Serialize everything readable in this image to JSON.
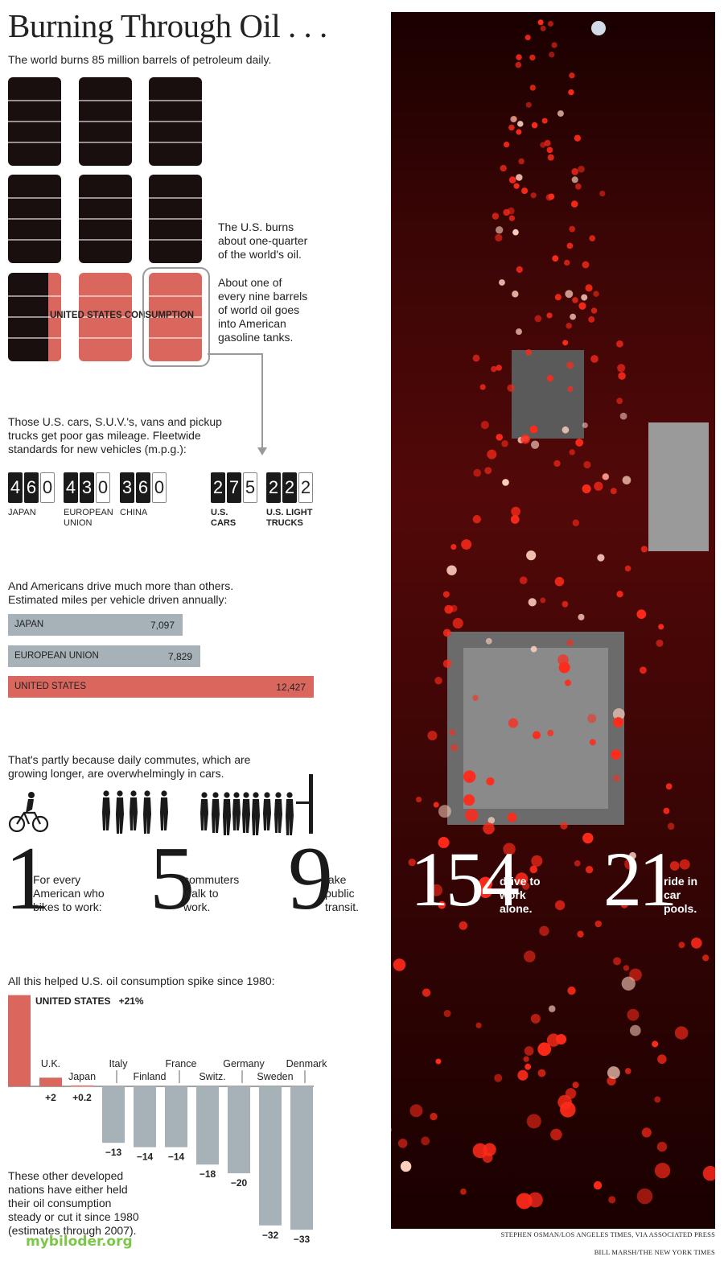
{
  "header": {
    "title": "Burning Through Oil . . .",
    "subtitle": "The world burns 85 million barrels of petroleum daily."
  },
  "barrels": {
    "us_label": "UNITED STATES CONSUMPTION",
    "note1": [
      "The U.S. burns",
      "about one-quarter",
      "of the world's oil."
    ],
    "note2": [
      "About one of",
      "every nine barrels",
      "of world oil goes",
      "into American",
      "gasoline tanks."
    ]
  },
  "mileage": {
    "intro": [
      "Those U.S. cars, S.U.V.'s, vans and pickup",
      "trucks get poor gas mileage. Fleetwide",
      "standards for new vehicles (m.p.g.):"
    ],
    "items": [
      {
        "digits": [
          "4",
          "6",
          "0"
        ],
        "label": [
          "JAPAN"
        ]
      },
      {
        "digits": [
          "4",
          "3",
          "0"
        ],
        "label": [
          "EUROPEAN",
          "UNION"
        ]
      },
      {
        "digits": [
          "3",
          "6",
          "0"
        ],
        "label": [
          "CHINA"
        ]
      },
      {
        "digits": [
          "2",
          "7",
          "5"
        ],
        "label": [
          "U.S.",
          "CARS"
        ]
      },
      {
        "digits": [
          "2",
          "2",
          "2"
        ],
        "label": [
          "U.S. LIGHT",
          "TRUCKS"
        ]
      }
    ]
  },
  "miles": {
    "intro": [
      "And Americans drive much more than others.",
      "Estimated miles per vehicle driven annually:"
    ],
    "rows": [
      {
        "name": "JAPAN",
        "value": "7,097"
      },
      {
        "name": "EUROPEAN UNION",
        "value": "7,829"
      },
      {
        "name": "UNITED STATES",
        "value": "12,427"
      }
    ]
  },
  "commute": {
    "intro": [
      "That's partly because daily commutes, which are",
      "growing longer, are overwhelmingly in cars."
    ],
    "n1": "1",
    "l1": [
      "For every",
      "American who",
      "bikes to work:"
    ],
    "n2": "5",
    "l2": [
      "commuters",
      "walk to",
      "work."
    ],
    "n3": "9",
    "l3": [
      "take",
      "public",
      "transit."
    ],
    "n4": "154",
    "l4": [
      "drive to",
      "work",
      "alone."
    ],
    "n5": "21",
    "l5": [
      "ride in",
      "car",
      "pools."
    ]
  },
  "change": {
    "intro": "All this helped U.S. oil consumption spike since 1980:",
    "us_label": "UNITED STATES",
    "us_change": "+21%",
    "note": [
      "These other developed",
      "nations have either held",
      "their oil consumption",
      "steady or cut it since 1980",
      "(estimates through 2007)."
    ]
  },
  "credits": {
    "photo": "STEPHEN OSMAN/LOS ANGELES TIMES, VIA ASSOCIATED PRESS",
    "graphic": "BILL MARSH/THE NEW YORK TIMES"
  },
  "watermark": "mybiloder.org",
  "colors": {
    "accent": "#d9675e",
    "barrel": "#1a0f0f",
    "gray_bar": "#a7b1b8"
  },
  "chart_data": [
    {
      "type": "bar",
      "categories": [
        "JAPAN",
        "EUROPEAN UNION",
        "UNITED STATES"
      ],
      "values": [
        7097,
        7829,
        12427
      ],
      "title": "Estimated miles per vehicle driven annually"
    },
    {
      "type": "bar",
      "categories": [
        "JAPAN",
        "EUROPEAN UNION",
        "CHINA",
        "U.S. CARS",
        "U.S. LIGHT TRUCKS"
      ],
      "values": [
        46.0,
        43.0,
        36.0,
        27.5,
        22.2
      ],
      "title": "Fleetwide standards for new vehicles (m.p.g.)"
    },
    {
      "type": "bar",
      "title": "All this helped U.S. oil consumption spike since 1980",
      "categories": [
        "UNITED STATES",
        "U.K.",
        "Japan",
        "Italy",
        "Finland",
        "France",
        "Switz.",
        "Germany",
        "Sweden",
        "Denmark"
      ],
      "values": [
        21,
        2,
        0.2,
        -13,
        -14,
        -14,
        -18,
        -20,
        -32,
        -33
      ],
      "labels": [
        "+21%",
        "+2",
        "+0.2",
        "−13",
        "−14",
        "−14",
        "−18",
        "−20",
        "−32",
        "−33"
      ]
    }
  ]
}
